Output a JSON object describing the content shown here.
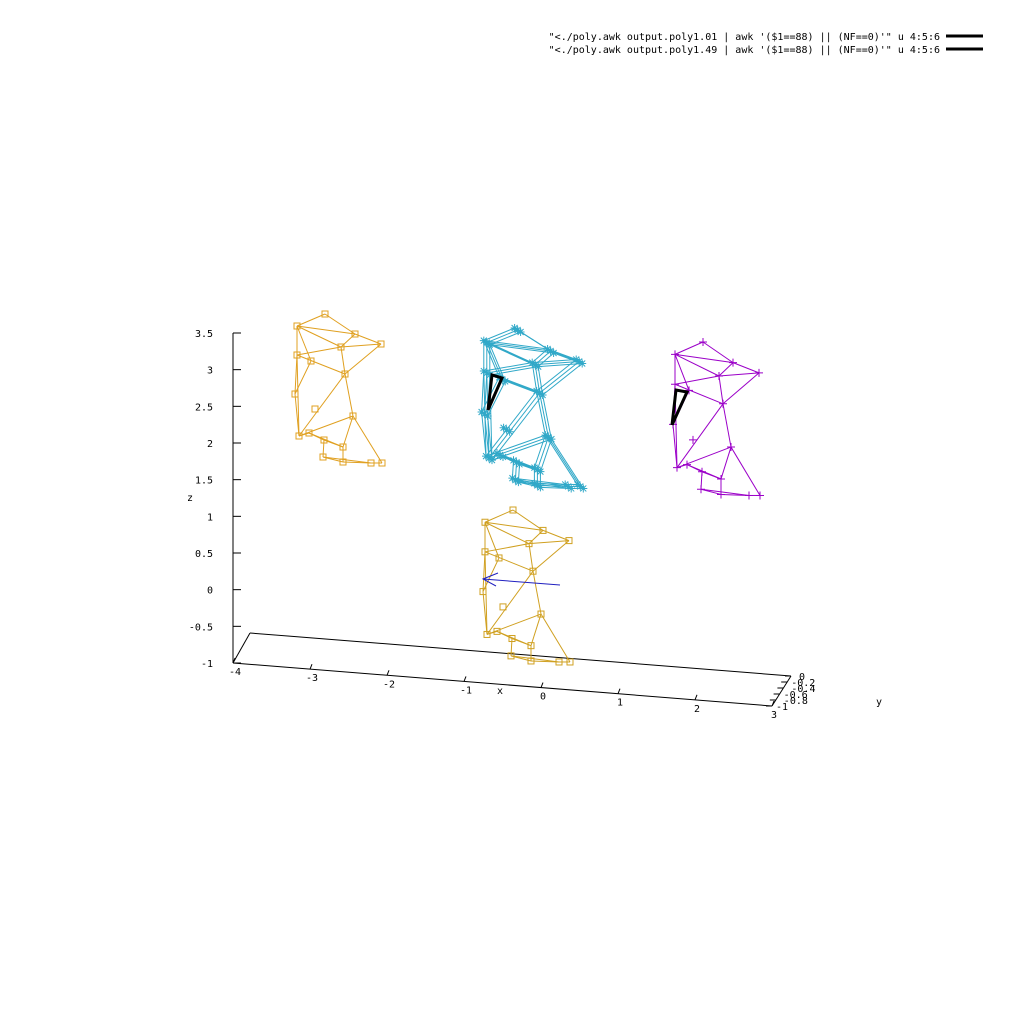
{
  "chart_data": {
    "type": "scatter",
    "title": "",
    "xlabel": "x",
    "ylabel": "y",
    "zlabel": "z",
    "z_ticks": [
      "3.5",
      "3",
      "2.5",
      "2",
      "1.5",
      "1",
      "0.5",
      "0",
      "-0.5",
      "-1"
    ],
    "x_ticks": [
      "-4",
      "-3",
      "-2",
      "-1",
      "0",
      "1",
      "2",
      "3"
    ],
    "y_ticks": [
      "-1",
      "-0.8",
      "-0.6",
      "-0.4",
      "-0.2",
      "0"
    ],
    "zlim": [
      -1,
      3.5
    ],
    "xlim": [
      -4,
      3
    ],
    "ylim": [
      -1,
      0
    ],
    "grid": false,
    "legend_position": "top-right",
    "legend": [
      "\"<./poly.awk output.poly1.01 | awk '($1==88) || (NF==0)'\" u 4:5:6",
      "\"<./poly.awk output.poly1.49 | awk '($1==88) || (NF==0)'\" u 4:5:6"
    ],
    "legend_line_color": "#000000",
    "series": [
      {
        "color": "#e0a020",
        "marker": "square",
        "z_range": [
          1.72,
          3.72
        ]
      },
      {
        "color": "#30a8c8",
        "marker": "asterisk",
        "z_range": [
          1.5,
          3.55
        ]
      },
      {
        "color": "#9b00c8",
        "marker": "plus",
        "z_range": [
          1.3,
          3.35
        ]
      },
      {
        "color": "#d0a020",
        "marker": "square",
        "z_range": [
          -0.95,
          1.08
        ]
      }
    ],
    "highlight_triangle_color": "#000000",
    "arrow_color": "#2020c0"
  }
}
